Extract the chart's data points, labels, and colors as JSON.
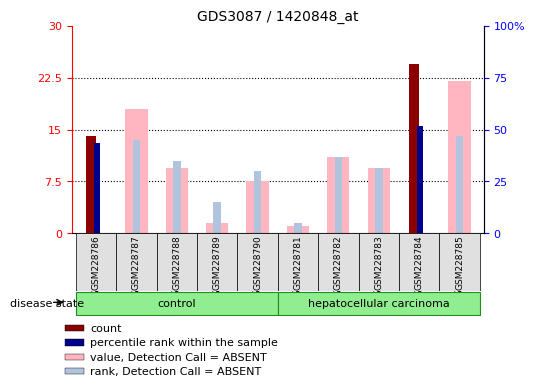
{
  "title": "GDS3087 / 1420848_at",
  "samples": [
    "GSM228786",
    "GSM228787",
    "GSM228788",
    "GSM228789",
    "GSM228790",
    "GSM228781",
    "GSM228782",
    "GSM228783",
    "GSM228784",
    "GSM228785"
  ],
  "count_values": [
    14.0,
    0,
    0,
    0,
    0,
    0,
    0,
    0,
    24.5,
    0
  ],
  "percentile_rank_values": [
    13.0,
    0,
    0,
    0,
    0,
    0,
    0,
    0,
    15.5,
    0
  ],
  "absent_value_bars": [
    0,
    18.0,
    9.5,
    1.5,
    7.5,
    1.0,
    11.0,
    9.5,
    0,
    22.0
  ],
  "absent_rank_bars": [
    0,
    13.5,
    10.5,
    4.5,
    9.0,
    1.5,
    11.0,
    9.5,
    0,
    14.0
  ],
  "left_ylim": [
    0,
    30
  ],
  "right_ylim": [
    0,
    100
  ],
  "left_yticks": [
    0,
    7.5,
    15,
    22.5,
    30
  ],
  "left_yticklabels": [
    "0",
    "7.5",
    "15",
    "22.5",
    "30"
  ],
  "right_yticks": [
    0,
    25,
    50,
    75,
    100
  ],
  "right_yticklabels": [
    "0",
    "25",
    "50",
    "75",
    "100%"
  ],
  "grid_lines": [
    7.5,
    15,
    22.5
  ],
  "color_count": "#8B0000",
  "color_percentile": "#00008B",
  "color_absent_value": "#FFB6C1",
  "color_absent_rank": "#B0C4DE",
  "bar_width": 0.25,
  "n_control": 5,
  "n_cancer": 5,
  "group_label_control": "control",
  "group_label_cancer": "hepatocellular carcinoma",
  "legend_items": [
    {
      "label": "count",
      "color": "#8B0000"
    },
    {
      "label": "percentile rank within the sample",
      "color": "#00008B"
    },
    {
      "label": "value, Detection Call = ABSENT",
      "color": "#FFB6C1"
    },
    {
      "label": "rank, Detection Call = ABSENT",
      "color": "#B0C4DE"
    }
  ],
  "disease_state_label": "disease state"
}
